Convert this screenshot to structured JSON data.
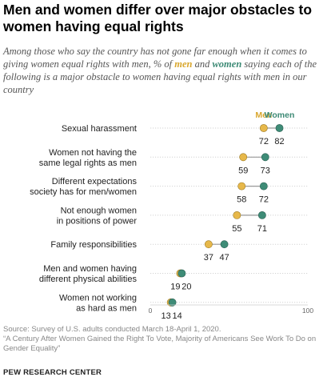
{
  "header": {
    "title": "Men and women differ over major obstacles to women having equal rights",
    "subtitle_pre": "Among those who say the country has not gone far enough when it comes to giving women equal rights with men, % of ",
    "subtitle_men": "men",
    "subtitle_and": " and ",
    "subtitle_women": "women",
    "subtitle_post": " saying each of the following is a major obstacle to women having equal rights with men in our country"
  },
  "chart_data": {
    "type": "dot",
    "xlim": [
      0,
      100
    ],
    "x_ticks": [
      "0",
      "100"
    ],
    "legend": {
      "men": "Men",
      "women": "Women"
    },
    "colors": {
      "men": "#e7b84a",
      "women": "#3e8c77",
      "men_text": "#d9a72e",
      "women_text": "#3d8a75"
    },
    "categories": [
      {
        "label": [
          "Sexual harassment"
        ],
        "men": 72,
        "women": 82
      },
      {
        "label": [
          "Women not having the",
          "same legal rights as men"
        ],
        "men": 59,
        "women": 73
      },
      {
        "label": [
          "Different expectations",
          "society has for men/women"
        ],
        "men": 58,
        "women": 72
      },
      {
        "label": [
          "Not enough women",
          "in positions of power"
        ],
        "men": 55,
        "women": 71
      },
      {
        "label": [
          "Family responsibilities"
        ],
        "men": 37,
        "women": 47
      },
      {
        "label": [
          "Men and women having",
          "different  physical abilities"
        ],
        "men": 19,
        "women": 20
      },
      {
        "label": [
          "Women not working",
          "as hard as men"
        ],
        "men": 13,
        "women": 14
      }
    ]
  },
  "source": {
    "line1": "Source: Survey of U.S. adults conducted March 18-April 1, 2020.",
    "line2": "“A Century After Women Gained the Right To Vote, Majority of Americans See Work To Do on Gender Equality”"
  },
  "footer": {
    "org": "PEW RESEARCH CENTER"
  }
}
